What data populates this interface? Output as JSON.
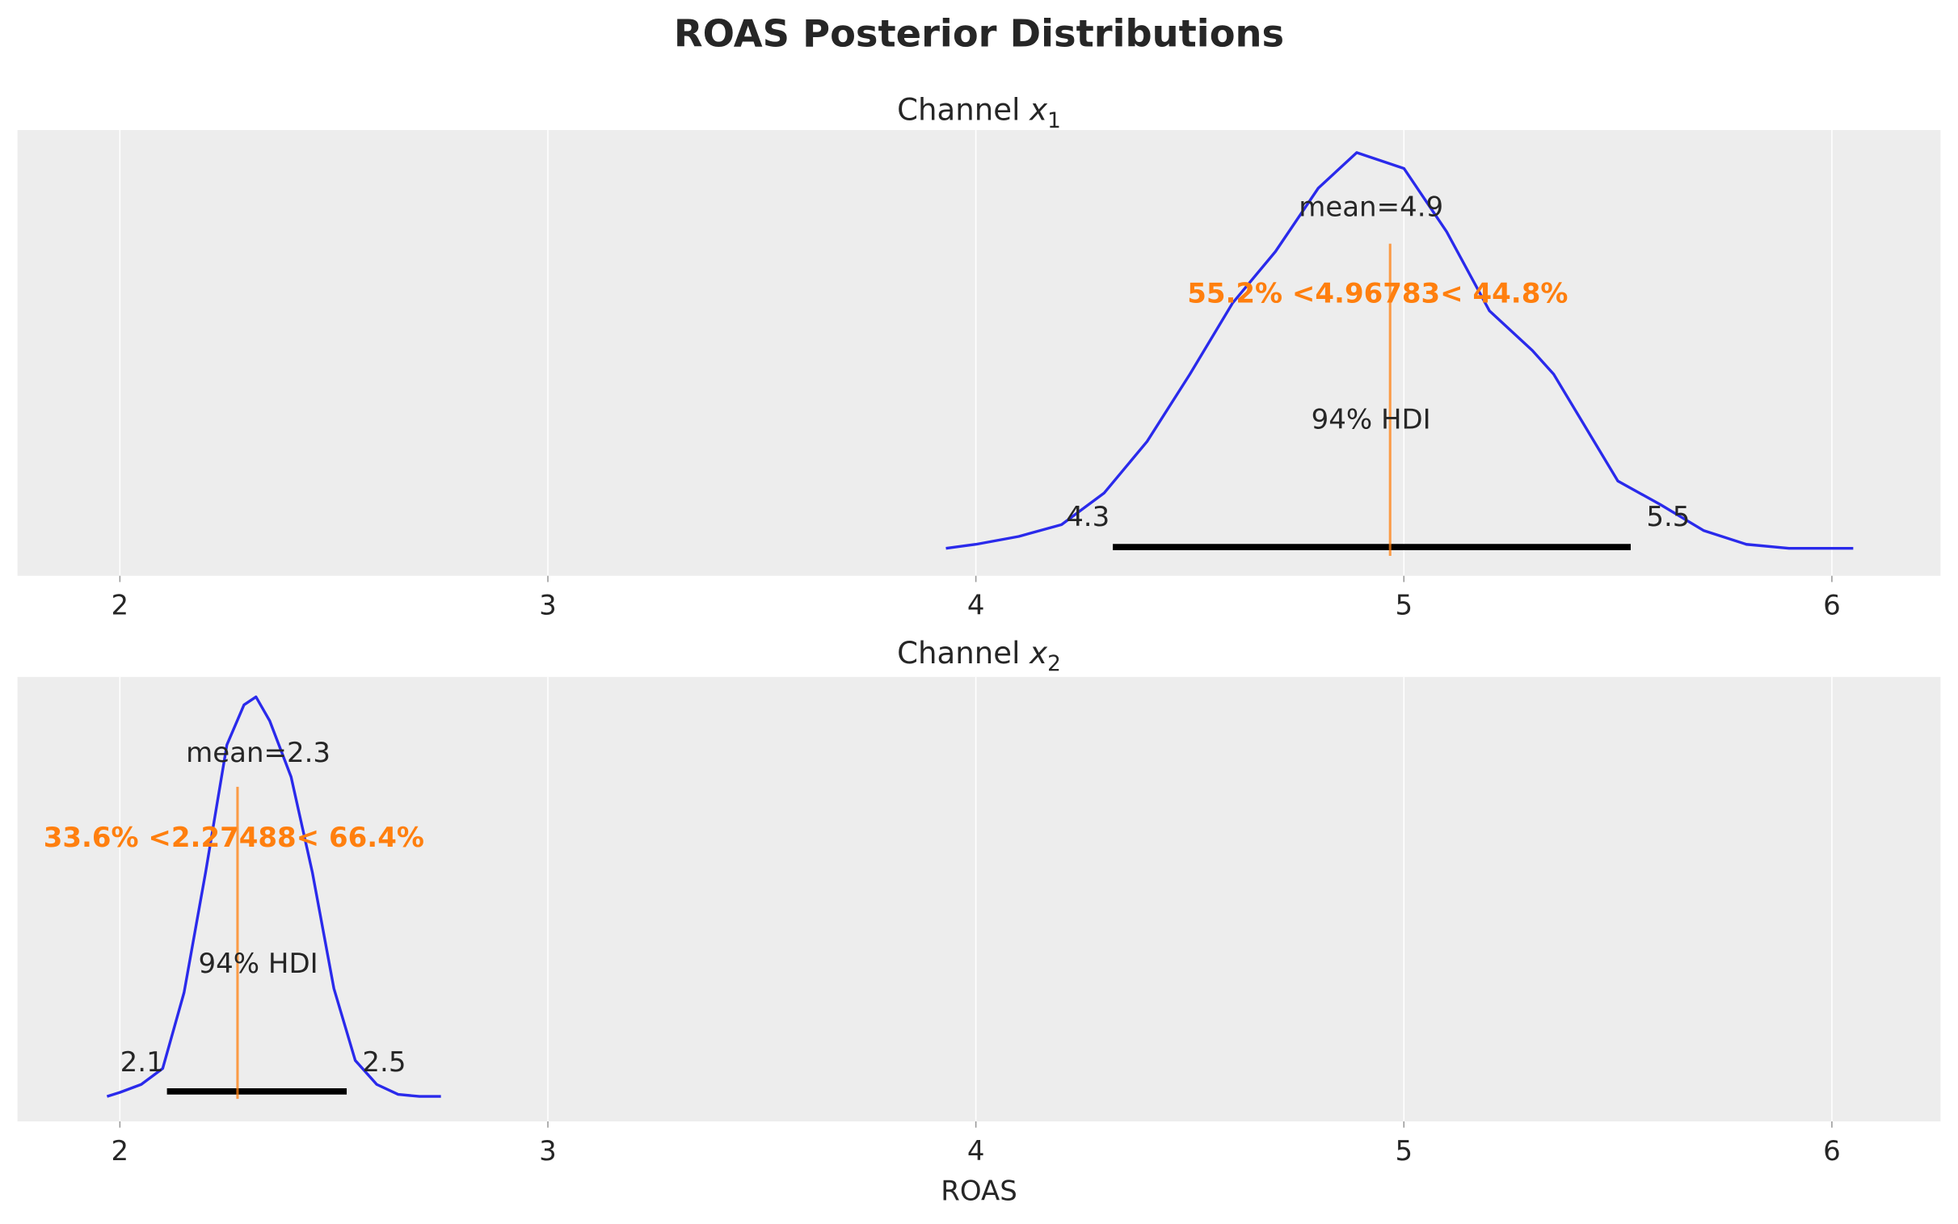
{
  "chart_data": {
    "type": "area",
    "title": "ROAS Posterior Distributions",
    "xlabel": "ROAS",
    "xlim": [
      1.77,
      6.25
    ],
    "xticks": [
      "2",
      "3",
      "4",
      "5",
      "6"
    ],
    "grid": true,
    "colors": {
      "density": "#2a2aeb",
      "reference": "#ff7f0e",
      "hdi": "#000000",
      "background": "#ededed",
      "text": "#262626"
    },
    "panels": [
      {
        "title_prefix": "Channel",
        "title_var": "x",
        "title_sub": "1",
        "mean": 4.9,
        "mean_label": "mean=4.9",
        "ref_value": 4.96783,
        "ref_label": "55.2% <4.96783< 44.8%",
        "hdi_label": "94% HDI",
        "hdi": [
          4.32,
          5.53
        ],
        "hdi_low_label": "4.3",
        "hdi_high_label": "5.5",
        "density": {
          "x": [
            3.93,
            4.0,
            4.1,
            4.2,
            4.3,
            4.4,
            4.5,
            4.6,
            4.7,
            4.8,
            4.89,
            5.0,
            5.1,
            5.2,
            5.3,
            5.35,
            5.4,
            5.5,
            5.6,
            5.7,
            5.8,
            5.9,
            6.05
          ],
          "y": [
            0.0,
            0.01,
            0.03,
            0.06,
            0.14,
            0.27,
            0.44,
            0.62,
            0.75,
            0.91,
            1.0,
            0.96,
            0.8,
            0.6,
            0.5,
            0.44,
            0.35,
            0.17,
            0.11,
            0.045,
            0.01,
            0.0,
            0.0
          ]
        }
      },
      {
        "title_prefix": "Channel",
        "title_var": "x",
        "title_sub": "2",
        "mean": 2.3,
        "mean_label": "mean=2.3",
        "ref_value": 2.27488,
        "ref_label": "33.6% <2.27488< 66.4%",
        "hdi_label": "94% HDI",
        "hdi": [
          2.11,
          2.53
        ],
        "hdi_low_label": "2.1",
        "hdi_high_label": "2.5",
        "density": {
          "x": [
            1.97,
            2.0,
            2.05,
            2.1,
            2.15,
            2.2,
            2.25,
            2.29,
            2.318,
            2.35,
            2.4,
            2.45,
            2.5,
            2.55,
            2.6,
            2.65,
            2.7,
            2.75
          ],
          "y": [
            0.0,
            0.01,
            0.03,
            0.07,
            0.26,
            0.56,
            0.88,
            0.98,
            1.0,
            0.94,
            0.8,
            0.56,
            0.27,
            0.09,
            0.03,
            0.005,
            0.0,
            0.0
          ]
        }
      }
    ]
  }
}
